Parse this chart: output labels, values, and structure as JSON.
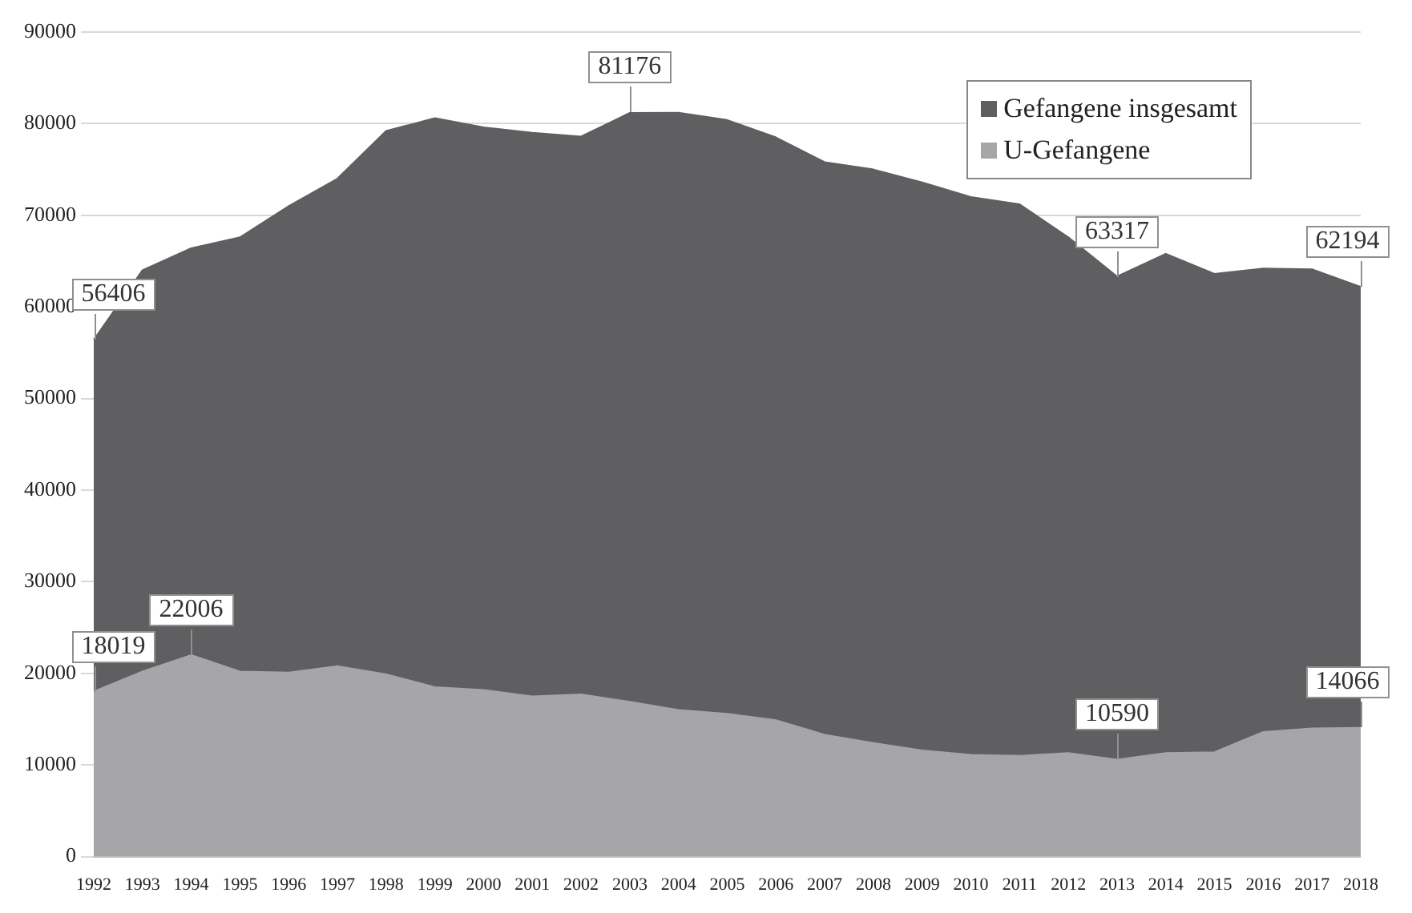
{
  "chart_data": {
    "type": "area",
    "categories": [
      "1992",
      "1993",
      "1994",
      "1995",
      "1996",
      "1997",
      "1998",
      "1999",
      "2000",
      "2001",
      "2002",
      "2003",
      "2004",
      "2005",
      "2006",
      "2007",
      "2008",
      "2009",
      "2010",
      "2011",
      "2012",
      "2013",
      "2014",
      "2015",
      "2016",
      "2017",
      "2018"
    ],
    "series": [
      {
        "name": "U-Gefangene",
        "color": "#a6a6a8",
        "values": [
          18019,
          20200,
          22006,
          20200,
          20100,
          20800,
          19900,
          18500,
          18200,
          17500,
          17700,
          16900,
          16000,
          15600,
          14900,
          13300,
          12400,
          11600,
          11100,
          11000,
          11300,
          10590,
          11300,
          11400,
          13600,
          14000,
          14066
        ],
        "value_labels": [
          "18019",
          null,
          "22006",
          null,
          null,
          null,
          null,
          null,
          null,
          null,
          null,
          null,
          null,
          null,
          null,
          null,
          null,
          null,
          null,
          null,
          null,
          "10590",
          null,
          null,
          null,
          null,
          "14066"
        ]
      },
      {
        "name": "Gefangene insgesamt",
        "color": "#5f5f61",
        "values": [
          56406,
          64000,
          66400,
          67600,
          71000,
          74000,
          79200,
          80600,
          79600,
          79000,
          78600,
          81176,
          81200,
          80400,
          78500,
          75800,
          75000,
          73600,
          72000,
          71200,
          67600,
          63317,
          65800,
          63600,
          64200,
          64100,
          62194
        ],
        "value_labels": [
          "56406",
          null,
          null,
          null,
          null,
          null,
          null,
          null,
          null,
          null,
          null,
          "81176",
          null,
          null,
          null,
          null,
          null,
          null,
          null,
          null,
          null,
          "63317",
          null,
          null,
          null,
          null,
          "62194"
        ]
      }
    ],
    "ylim": [
      0,
      90000
    ],
    "yticks": [
      0,
      10000,
      20000,
      30000,
      40000,
      50000,
      60000,
      70000,
      80000,
      90000
    ],
    "grid": "y",
    "legend": "top right"
  }
}
